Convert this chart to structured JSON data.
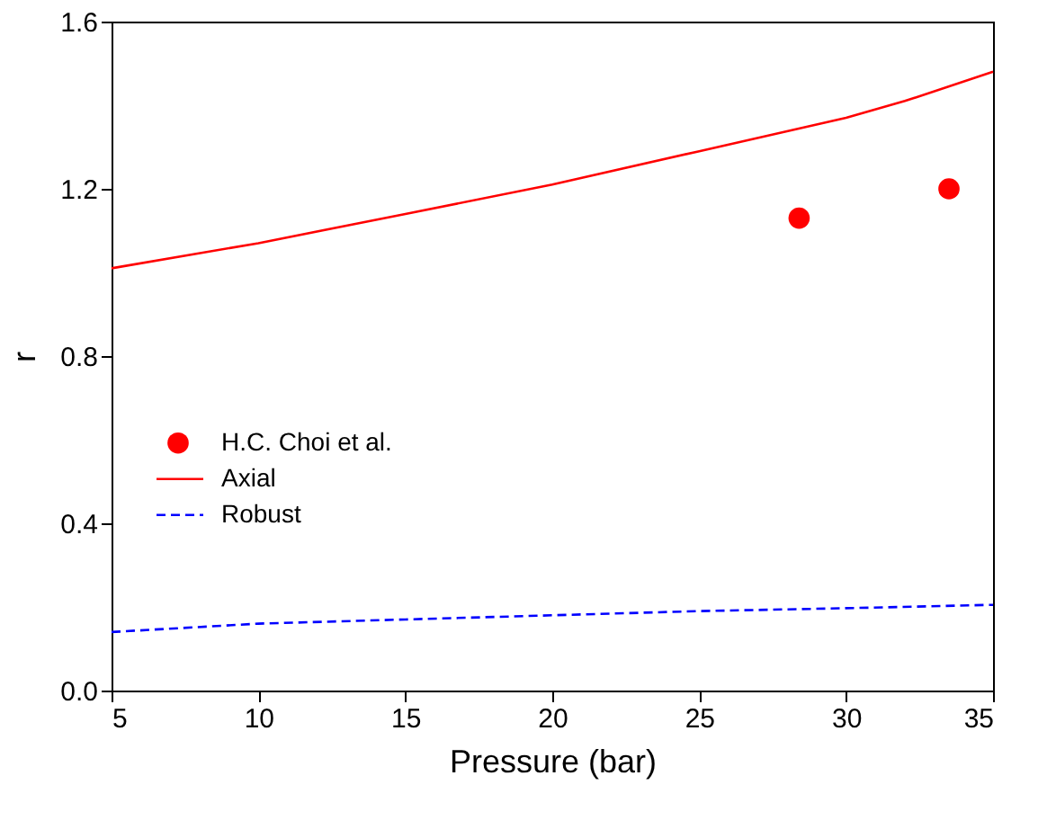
{
  "chart_data": {
    "type": "line",
    "xlabel": "Pressure (bar)",
    "ylabel": "r",
    "xlim": [
      5,
      35
    ],
    "xticks": [
      5,
      10,
      15,
      20,
      25,
      30,
      35
    ],
    "ylim": [
      0,
      1.6
    ],
    "yticks": [
      {
        "value": 0,
        "label": "0.0"
      },
      {
        "value": 0.4,
        "label": "0.4"
      },
      {
        "value": 0.8,
        "label": "0.8"
      },
      {
        "value": 1.2,
        "label": "1.2"
      },
      {
        "value": 1.6,
        "label": "1.6"
      }
    ],
    "grid": false,
    "legend": "left",
    "series": [
      {
        "name": "H.C. Choi et al.",
        "type": "scatter",
        "marker": "circle",
        "color": "#ff0000",
        "x": [
          28.4,
          33.5
        ],
        "values": [
          1.13,
          1.2
        ]
      },
      {
        "name": "Axial",
        "line_style": "solid",
        "color": "#ff0000",
        "x": [
          5,
          10,
          15,
          20,
          25,
          30,
          32,
          35
        ],
        "values": [
          1.01,
          1.07,
          1.14,
          1.21,
          1.29,
          1.37,
          1.41,
          1.48
        ]
      },
      {
        "name": "Robust",
        "line_style": "dashed",
        "color": "#0000ff",
        "x": [
          5,
          10,
          15,
          20,
          25,
          30,
          35
        ],
        "values": [
          0.14,
          0.16,
          0.17,
          0.18,
          0.19,
          0.197,
          0.205
        ]
      }
    ]
  }
}
